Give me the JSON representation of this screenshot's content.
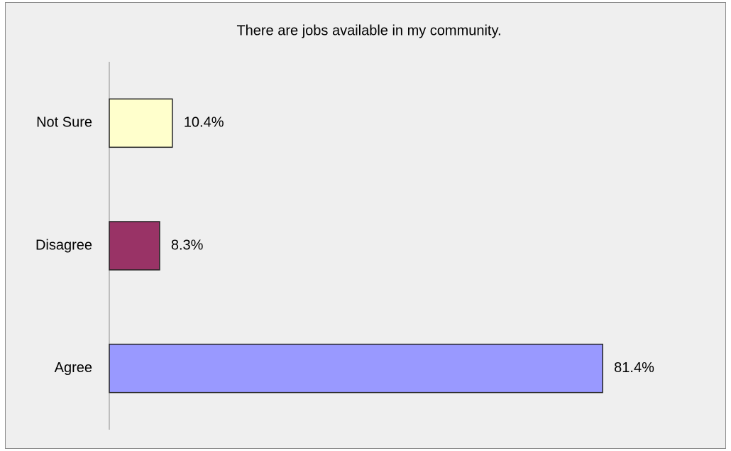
{
  "chart_data": {
    "type": "hbar",
    "title": "There are jobs available in my community.",
    "categories": [
      "Not Sure",
      "Disagree",
      "Agree"
    ],
    "values": [
      10.4,
      8.3,
      81.4
    ],
    "value_labels": [
      "10.4%",
      "8.3%",
      "81.4%"
    ],
    "colors": [
      "#ffffcc",
      "#993366",
      "#9999ff"
    ],
    "xlim": [
      0,
      100
    ]
  }
}
